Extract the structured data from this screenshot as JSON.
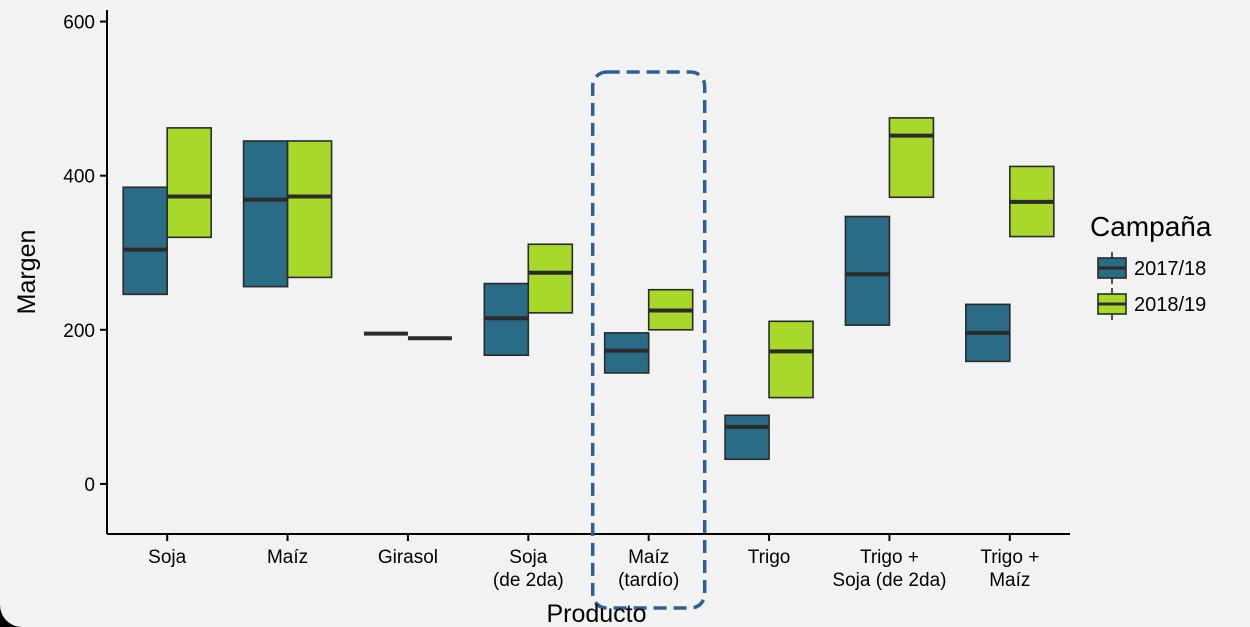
{
  "chart_data": {
    "type": "box",
    "xlabel": "Producto",
    "ylabel": "Margen",
    "ylim": [
      -65,
      615
    ],
    "yticks": [
      0,
      200,
      400,
      600
    ],
    "grid": false,
    "legend_position": "right",
    "legend": {
      "title": "Campaña",
      "entries": [
        {
          "name": "2017/18",
          "color": "#2a6b85"
        },
        {
          "name": "2018/19",
          "color": "#a8d82a"
        }
      ]
    },
    "categories": [
      {
        "lines": [
          "Soja"
        ]
      },
      {
        "lines": [
          "Maíz"
        ]
      },
      {
        "lines": [
          "Girasol"
        ]
      },
      {
        "lines": [
          "Soja",
          "(de 2da)"
        ]
      },
      {
        "lines": [
          "Maíz",
          "(tardío)"
        ]
      },
      {
        "lines": [
          "Trigo"
        ]
      },
      {
        "lines": [
          "Trigo +",
          "Soja (de 2da)"
        ]
      },
      {
        "lines": [
          "Trigo +",
          "Maíz"
        ]
      }
    ],
    "highlighted_category": 4,
    "series": [
      {
        "name": "2017/18",
        "color": "#2a6b85",
        "boxes": [
          {
            "low": 246,
            "median": 304,
            "high": 385
          },
          {
            "low": 256,
            "median": 369,
            "high": 445
          },
          {
            "low": 195,
            "median": 195,
            "high": 195
          },
          {
            "low": 167,
            "median": 215,
            "high": 260
          },
          {
            "low": 144,
            "median": 173,
            "high": 196
          },
          {
            "low": 32,
            "median": 74,
            "high": 89
          },
          {
            "low": 206,
            "median": 272,
            "high": 347
          },
          {
            "low": 159,
            "median": 196,
            "high": 233
          }
        ]
      },
      {
        "name": "2018/19",
        "color": "#a8d82a",
        "boxes": [
          {
            "low": 320,
            "median": 373,
            "high": 462
          },
          {
            "low": 268,
            "median": 373,
            "high": 445
          },
          {
            "low": 189,
            "median": 189,
            "high": 189
          },
          {
            "low": 222,
            "median": 274,
            "high": 311
          },
          {
            "low": 200,
            "median": 225,
            "high": 252
          },
          {
            "low": 112,
            "median": 172,
            "high": 211
          },
          {
            "low": 372,
            "median": 452,
            "high": 475
          },
          {
            "low": 321,
            "median": 366,
            "high": 412
          }
        ]
      }
    ]
  }
}
